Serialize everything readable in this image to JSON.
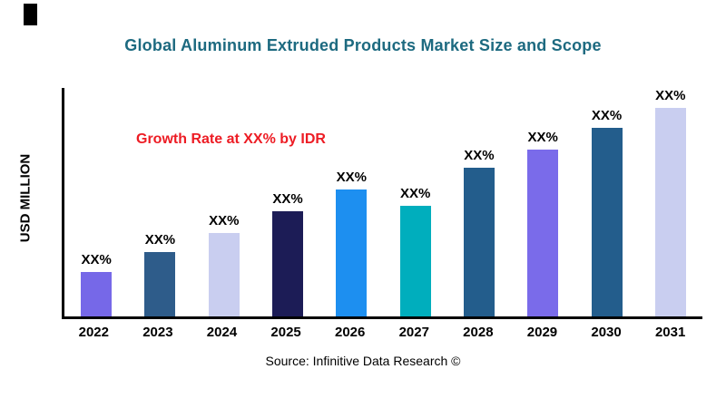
{
  "title": "Global Aluminum Extruded Products  Market Size and Scope",
  "title_color": "#1d6a80",
  "annotation": {
    "text": "Growth Rate at XX% by IDR",
    "color": "#ed1c24"
  },
  "source_text": "Source: Infinitive Data Research ©",
  "chart_data": {
    "type": "bar",
    "title": "Global Aluminum Extruded Products  Market Size and Scope",
    "xlabel": "",
    "ylabel": "USD MILLION",
    "categories": [
      "2022",
      "2023",
      "2024",
      "2025",
      "2026",
      "2027",
      "2028",
      "2029",
      "2030",
      "2031"
    ],
    "values": [
      49,
      71,
      92,
      116,
      140,
      122,
      164,
      184,
      208,
      232
    ],
    "value_labels": [
      "XX%",
      "XX%",
      "XX%",
      "XX%",
      "XX%",
      "XX%",
      "XX%",
      "XX%",
      "XX%",
      "XX%"
    ],
    "bar_colors": [
      "#7668e8",
      "#2e5c8a",
      "#c9cef0",
      "#1c1c56",
      "#1d8ff0",
      "#00aebd",
      "#235d8c",
      "#7a6bea",
      "#235d8c",
      "#c9cef0"
    ],
    "ylim": [
      0,
      255
    ],
    "grid": false,
    "legend": "none",
    "annotations": [
      "Growth Rate at XX% by IDR"
    ]
  }
}
